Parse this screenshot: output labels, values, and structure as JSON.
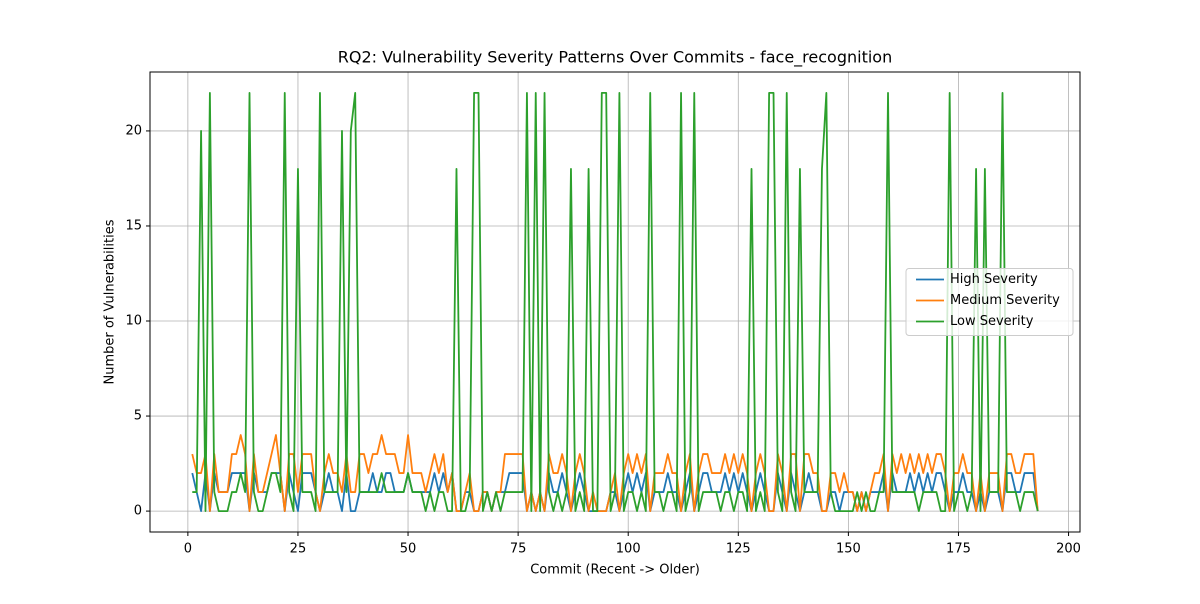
{
  "chart_data": {
    "type": "line",
    "title": "RQ2: Vulnerability Severity Patterns Over Commits - face_recognition",
    "xlabel": "Commit (Recent -> Older)",
    "ylabel": "Number of Vulnerabilities",
    "x": [
      1,
      2,
      3,
      4,
      5,
      6,
      7,
      8,
      9,
      10,
      11,
      12,
      13,
      14,
      15,
      16,
      17,
      18,
      19,
      20,
      21,
      22,
      23,
      24,
      25,
      26,
      27,
      28,
      29,
      30,
      31,
      32,
      33,
      34,
      35,
      36,
      37,
      38,
      39,
      40,
      41,
      42,
      43,
      44,
      45,
      46,
      47,
      48,
      49,
      50,
      51,
      52,
      53,
      54,
      55,
      56,
      57,
      58,
      59,
      60,
      61,
      62,
      63,
      64,
      65,
      66,
      67,
      68,
      69,
      70,
      71,
      72,
      73,
      74,
      75,
      76,
      77,
      78,
      79,
      80,
      81,
      82,
      83,
      84,
      85,
      86,
      87,
      88,
      89,
      90,
      91,
      92,
      93,
      94,
      95,
      96,
      97,
      98,
      99,
      100,
      101,
      102,
      103,
      104,
      105,
      106,
      107,
      108,
      109,
      110,
      111,
      112,
      113,
      114,
      115,
      116,
      117,
      118,
      119,
      120,
      121,
      122,
      123,
      124,
      125,
      126,
      127,
      128,
      129,
      130,
      131,
      132,
      133,
      134,
      135,
      136,
      137,
      138,
      139,
      140,
      141,
      142,
      143,
      144,
      145,
      146,
      147,
      148,
      149,
      150,
      151,
      152,
      153,
      154,
      155,
      156,
      157,
      158,
      159,
      160,
      161,
      162,
      163,
      164,
      165,
      166,
      167,
      168,
      169,
      170,
      171,
      172,
      173,
      174,
      175,
      176,
      177,
      178,
      179,
      180,
      181,
      182,
      183,
      184,
      185,
      186,
      187,
      188,
      189,
      190,
      191,
      192,
      193
    ],
    "series": [
      {
        "name": "High Severity",
        "color": "#1f77b4",
        "values": [
          2,
          1,
          0,
          2,
          0,
          2,
          1,
          1,
          1,
          2,
          2,
          2,
          2,
          0,
          2,
          1,
          1,
          1,
          2,
          2,
          2,
          0,
          2,
          1,
          0,
          2,
          2,
          2,
          1,
          0,
          1,
          2,
          1,
          1,
          0,
          2,
          0,
          0,
          1,
          1,
          1,
          2,
          1,
          1,
          2,
          2,
          1,
          1,
          1,
          2,
          1,
          1,
          1,
          1,
          1,
          2,
          1,
          2,
          1,
          2,
          0,
          0,
          1,
          1,
          0,
          0,
          1,
          1,
          0,
          1,
          1,
          1,
          2,
          2,
          2,
          2,
          0,
          1,
          0,
          1,
          0,
          2,
          1,
          1,
          2,
          1,
          0,
          1,
          2,
          1,
          0,
          0,
          0,
          0,
          0,
          1,
          1,
          0,
          1,
          2,
          1,
          2,
          1,
          2,
          0,
          1,
          1,
          1,
          2,
          1,
          1,
          0,
          1,
          2,
          0,
          1,
          2,
          2,
          1,
          1,
          1,
          2,
          1,
          2,
          1,
          2,
          1,
          0,
          1,
          2,
          1,
          0,
          0,
          2,
          1,
          0,
          2,
          1,
          0,
          1,
          2,
          1,
          1,
          0,
          0,
          1,
          1,
          0,
          1,
          1,
          1,
          0,
          1,
          0,
          1,
          1,
          1,
          2,
          0,
          2,
          1,
          1,
          1,
          2,
          1,
          2,
          1,
          2,
          1,
          2,
          2,
          1,
          0,
          1,
          1,
          2,
          1,
          1,
          0,
          1,
          0,
          1,
          1,
          1,
          0,
          2,
          2,
          1,
          1,
          2,
          2,
          2,
          0
        ]
      },
      {
        "name": "Medium Severity",
        "color": "#ff7f0e",
        "values": [
          3,
          2,
          2,
          3,
          0,
          3,
          1,
          1,
          1,
          3,
          3,
          4,
          3,
          0,
          3,
          1,
          1,
          2,
          3,
          4,
          2,
          0,
          3,
          3,
          1,
          3,
          3,
          3,
          1,
          0,
          2,
          3,
          2,
          2,
          1,
          3,
          1,
          1,
          3,
          3,
          2,
          3,
          3,
          4,
          3,
          3,
          3,
          2,
          2,
          4,
          2,
          2,
          2,
          1,
          2,
          3,
          2,
          3,
          1,
          2,
          0,
          0,
          1,
          2,
          0,
          0,
          1,
          1,
          0,
          1,
          1,
          3,
          3,
          3,
          3,
          3,
          0,
          1,
          0,
          1,
          0,
          3,
          2,
          2,
          3,
          2,
          0,
          2,
          3,
          2,
          0,
          1,
          0,
          0,
          0,
          1,
          2,
          0,
          2,
          3,
          2,
          3,
          2,
          3,
          0,
          2,
          2,
          2,
          3,
          2,
          2,
          0,
          2,
          3,
          0,
          2,
          3,
          3,
          2,
          2,
          2,
          3,
          2,
          3,
          2,
          3,
          2,
          0,
          2,
          3,
          2,
          0,
          0,
          3,
          2,
          0,
          3,
          3,
          0,
          3,
          3,
          2,
          2,
          0,
          0,
          2,
          2,
          1,
          2,
          1,
          1,
          0,
          1,
          0,
          1,
          2,
          2,
          3,
          0,
          3,
          2,
          3,
          2,
          3,
          2,
          3,
          2,
          3,
          2,
          3,
          3,
          2,
          0,
          2,
          2,
          3,
          2,
          2,
          0,
          2,
          0,
          2,
          2,
          2,
          0,
          3,
          3,
          2,
          2,
          3,
          3,
          3,
          0
        ]
      },
      {
        "name": "Low Severity",
        "color": "#2ca02c",
        "values": [
          1,
          1,
          20,
          0,
          22,
          1,
          0,
          0,
          0,
          1,
          1,
          2,
          1,
          22,
          1,
          0,
          0,
          1,
          2,
          2,
          1,
          22,
          1,
          0,
          18,
          1,
          1,
          1,
          0,
          22,
          1,
          1,
          1,
          1,
          20,
          1,
          20,
          22,
          1,
          1,
          1,
          1,
          1,
          2,
          1,
          1,
          1,
          1,
          1,
          2,
          1,
          1,
          1,
          0,
          1,
          0,
          1,
          1,
          0,
          0,
          18,
          0,
          0,
          1,
          22,
          22,
          0,
          1,
          0,
          1,
          0,
          1,
          1,
          1,
          1,
          1,
          22,
          0,
          22,
          0,
          22,
          1,
          0,
          1,
          0,
          1,
          18,
          0,
          1,
          0,
          18,
          0,
          0,
          22,
          22,
          0,
          1,
          22,
          0,
          1,
          1,
          0,
          1,
          0,
          22,
          1,
          1,
          0,
          1,
          1,
          0,
          22,
          0,
          1,
          22,
          0,
          1,
          1,
          1,
          1,
          0,
          1,
          1,
          0,
          1,
          1,
          0,
          18,
          0,
          1,
          0,
          22,
          22,
          1,
          0,
          22,
          1,
          0,
          18,
          1,
          1,
          1,
          1,
          18,
          22,
          1,
          0,
          0,
          0,
          0,
          0,
          1,
          0,
          1,
          0,
          0,
          1,
          1,
          22,
          1,
          1,
          1,
          1,
          1,
          1,
          0,
          1,
          1,
          1,
          1,
          0,
          0,
          22,
          0,
          1,
          1,
          0,
          1,
          18,
          0,
          18,
          1,
          1,
          1,
          22,
          1,
          1,
          1,
          0,
          1,
          1,
          1,
          0
        ]
      }
    ],
    "xlim": [
      -8.6,
      202.6
    ],
    "xticks": [
      0,
      25,
      50,
      75,
      100,
      125,
      150,
      175,
      200
    ],
    "ylim": [
      -1.1,
      23.1
    ],
    "yticks": [
      0,
      5,
      10,
      15,
      20
    ],
    "grid": true,
    "legend": "center right"
  }
}
